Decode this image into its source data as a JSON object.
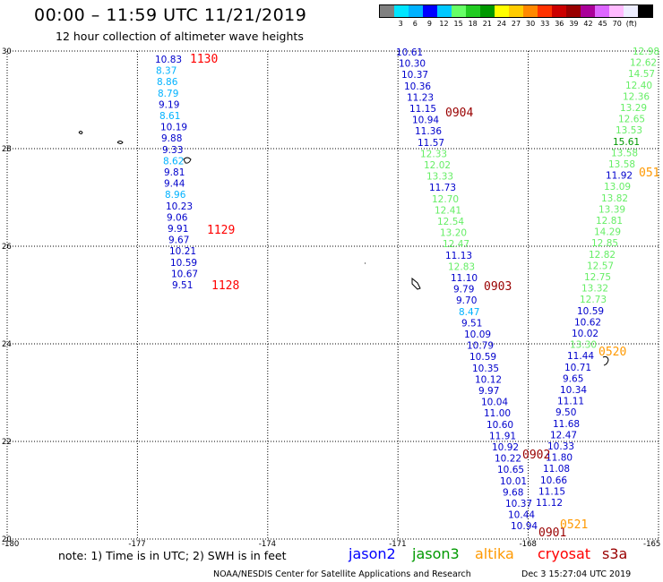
{
  "header": {
    "title": "00:00 – 11:59 UTC 11/21/2019",
    "subtitle": "12 hour collection of altimeter wave heights"
  },
  "legend": {
    "colors": [
      "#808080",
      "#00e5ff",
      "#00b2ff",
      "#0000ff",
      "#00c8ff",
      "#66ff66",
      "#22cc22",
      "#009900",
      "#ffff00",
      "#ffcc00",
      "#ff8800",
      "#ff3300",
      "#cc0000",
      "#990000",
      "#aa0099",
      "#dd66ff",
      "#ffbbff",
      "#eeeeff",
      "#000000"
    ],
    "labels": [
      "3",
      "6",
      "9",
      "12",
      "15",
      "18",
      "21",
      "24",
      "27",
      "30",
      "33",
      "36",
      "39",
      "42",
      "45",
      "70",
      "(ft)"
    ]
  },
  "axes": {
    "x_ticks": [
      "-180",
      "-177",
      "-174",
      "-171",
      "-168",
      "-165"
    ],
    "y_ticks": [
      "30",
      "28",
      "26",
      "24",
      "22",
      "20"
    ]
  },
  "tracks": {
    "track1": [
      "10.83",
      "8.37",
      "8.86",
      "8.79",
      "9.19",
      "8.61",
      "10.19",
      "9.88",
      "9.33",
      "8.62",
      "9.81",
      "9.44",
      "8.96",
      "10.23",
      "9.06",
      "9.91",
      "9.67",
      "10.21",
      "10.59",
      "10.67",
      "9.51"
    ],
    "track1_colors": [
      "b",
      "c",
      "c",
      "c",
      "b",
      "c",
      "b",
      "b",
      "b",
      "c",
      "b",
      "b",
      "c",
      "b",
      "b",
      "b",
      "b",
      "b",
      "b",
      "b",
      "b"
    ],
    "track2": [
      "10.61",
      "10.30",
      "10.37",
      "10.36",
      "11.23",
      "11.15",
      "10.94",
      "11.36",
      "11.57",
      "12.33",
      "12.02",
      "13.33",
      "11.73",
      "12.70",
      "12.41",
      "12.54",
      "13.20",
      "12.47",
      "11.13",
      "12.83",
      "11.10",
      "9.79",
      "9.70",
      "8.47",
      "9.51",
      "10.09",
      "10.79",
      "10.59",
      "10.35",
      "10.12",
      "9.97",
      "10.04",
      "11.00",
      "10.60",
      "11.91",
      "10.92",
      "10.22",
      "10.65",
      "10.01",
      "9.68",
      "10.37",
      "10.44",
      "10.94"
    ],
    "track2_colors": [
      "b",
      "b",
      "b",
      "b",
      "b",
      "b",
      "b",
      "b",
      "b",
      "g",
      "g",
      "g",
      "b",
      "g",
      "g",
      "g",
      "g",
      "g",
      "b",
      "g",
      "b",
      "b",
      "b",
      "c",
      "b",
      "b",
      "b",
      "b",
      "b",
      "b",
      "b",
      "b",
      "b",
      "b",
      "b",
      "b",
      "b",
      "b",
      "b",
      "b",
      "b",
      "b",
      "b"
    ],
    "track3": [
      "12.98",
      "12.62",
      "14.57",
      "12.40",
      "12.36",
      "13.29",
      "12.65",
      "13.53",
      "15.61",
      "13.58",
      "13.58",
      "11.92",
      "13.09",
      "13.82",
      "13.39",
      "12.81",
      "14.29",
      "12.85",
      "12.82",
      "12.57",
      "12.75",
      "13.32",
      "12.73",
      "10.59",
      "10.62",
      "10.02",
      "13.30",
      "11.44",
      "10.71",
      "9.65",
      "10.34",
      "11.11",
      "9.50",
      "11.68",
      "12.47",
      "10.33",
      "11.80",
      "11.08",
      "10.66",
      "11.15",
      "11.12"
    ],
    "track3_colors": [
      "g",
      "g",
      "g",
      "g",
      "g",
      "g",
      "g",
      "g",
      "d",
      "g",
      "g",
      "b",
      "g",
      "g",
      "g",
      "g",
      "g",
      "g",
      "g",
      "g",
      "g",
      "g",
      "g",
      "b",
      "b",
      "b",
      "g",
      "b",
      "b",
      "b",
      "b",
      "b",
      "b",
      "b",
      "b",
      "b",
      "b",
      "b",
      "b",
      "b",
      "b"
    ]
  },
  "time_labels": [
    {
      "text": "1130",
      "color": "#ff0000"
    },
    {
      "text": "1129",
      "color": "#ff0000"
    },
    {
      "text": "1128",
      "color": "#ff0000"
    },
    {
      "text": "0904",
      "color": "#990000"
    },
    {
      "text": "0903",
      "color": "#990000"
    },
    {
      "text": "0902",
      "color": "#990000"
    },
    {
      "text": "0901",
      "color": "#990000"
    },
    {
      "text": "051",
      "color": "#ff9900"
    },
    {
      "text": "0520",
      "color": "#ff9900"
    },
    {
      "text": "0521",
      "color": "#ff9900"
    }
  ],
  "track_colors": {
    "b": "#0000cc",
    "c": "#00b2ff",
    "g": "#66ee66",
    "d": "#009900"
  },
  "footer": {
    "note": "note:  1) Time is in UTC;  2) SWH is in feet",
    "satellites": [
      {
        "name": "jason2",
        "color": "#0000ff"
      },
      {
        "name": "jason3",
        "color": "#009900"
      },
      {
        "name": "altika",
        "color": "#ff9900"
      },
      {
        "name": "cryosat",
        "color": "#ff0000"
      },
      {
        "name": "s3a",
        "color": "#990000"
      }
    ],
    "credit": "NOAA/NESDIS Center for Satellite Applications and Research",
    "timestamp": "Dec  3 15:27:04 UTC 2019"
  }
}
